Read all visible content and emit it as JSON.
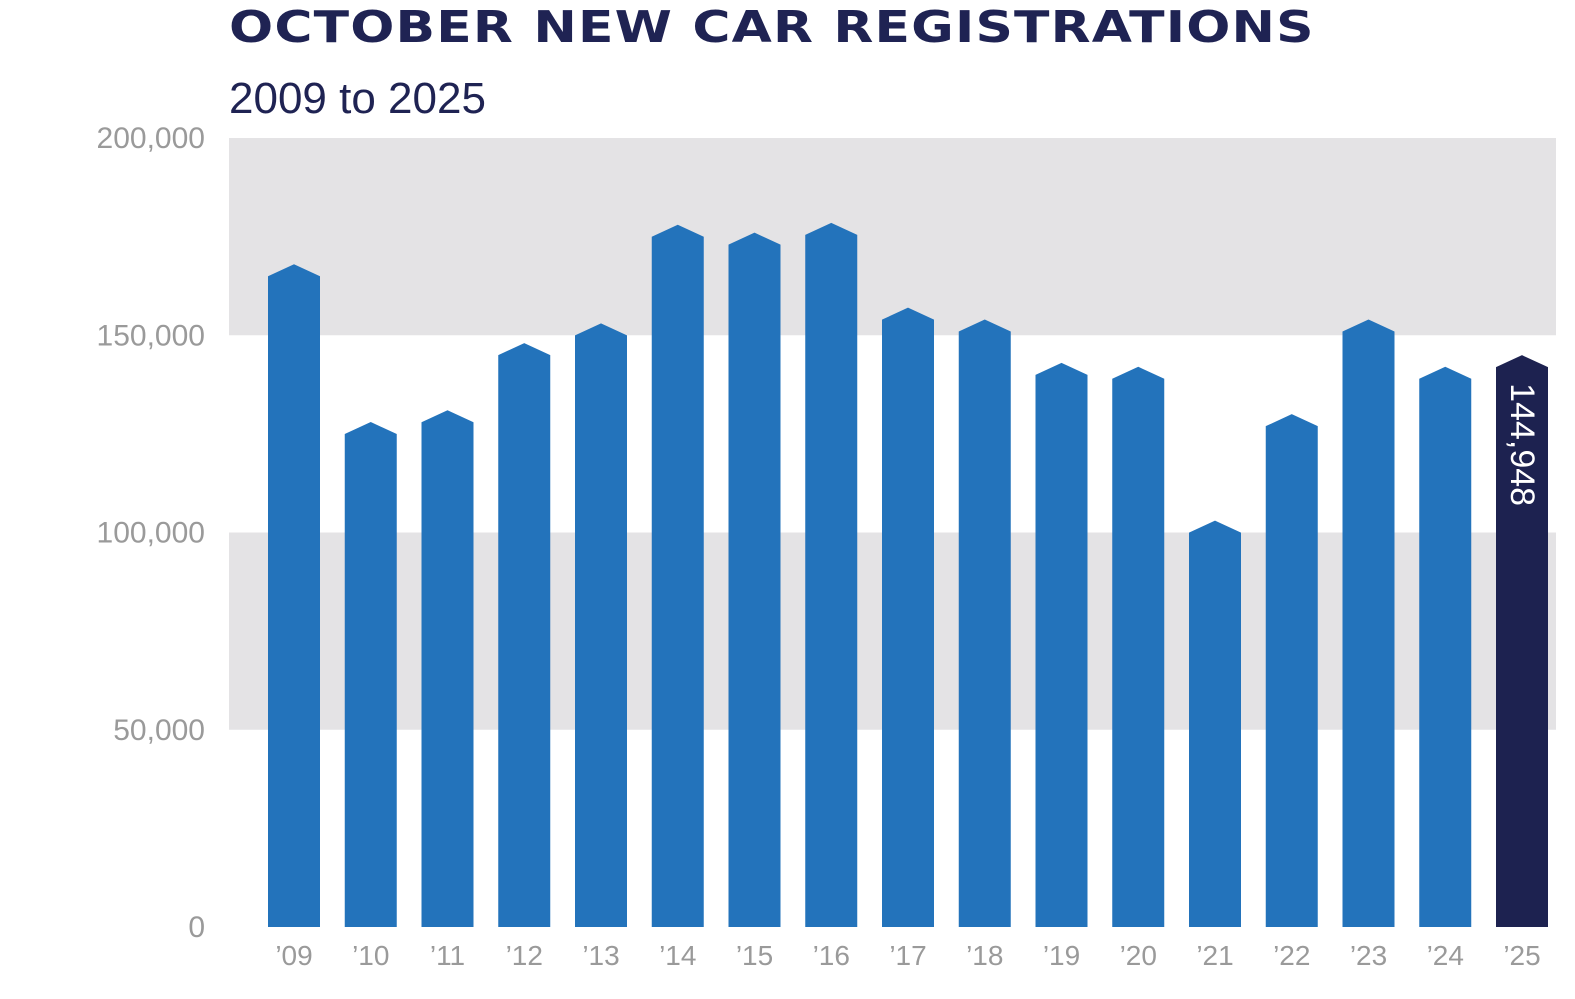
{
  "chart_data": {
    "type": "bar",
    "title": "OCTOBER NEW CAR REGISTRATIONS",
    "subtitle": "2009 to 2025",
    "xlabel": "",
    "ylabel": "",
    "ylim": [
      0,
      200000
    ],
    "yticks": [
      0,
      50000,
      100000,
      150000,
      200000
    ],
    "ytick_labels": [
      "0",
      "50,000",
      "100,000",
      "150,000",
      "200,000"
    ],
    "categories": [
      "’09",
      "’10",
      "’11",
      "’12",
      "’13",
      "’14",
      "’15",
      "’16",
      "’17",
      "’18",
      "’19",
      "’20",
      "’21",
      "’22",
      "’23",
      "’24",
      "’25"
    ],
    "values": [
      168000,
      128000,
      131000,
      148000,
      153000,
      178000,
      176000,
      178500,
      157000,
      154000,
      143000,
      142000,
      103000,
      130000,
      154000,
      142000,
      144948
    ],
    "highlight_index": 16,
    "data_labels": [
      {
        "index": 16,
        "text": "144,948"
      }
    ],
    "colors": {
      "bar": "#2373bb",
      "highlight": "#1d2250",
      "band": "#e4e3e5",
      "axis_text": "#9a9a9a",
      "title": "#1f2353"
    },
    "bands": [
      [
        50000,
        100000
      ],
      [
        150000,
        200000
      ]
    ],
    "grid": false,
    "legend": "none"
  }
}
